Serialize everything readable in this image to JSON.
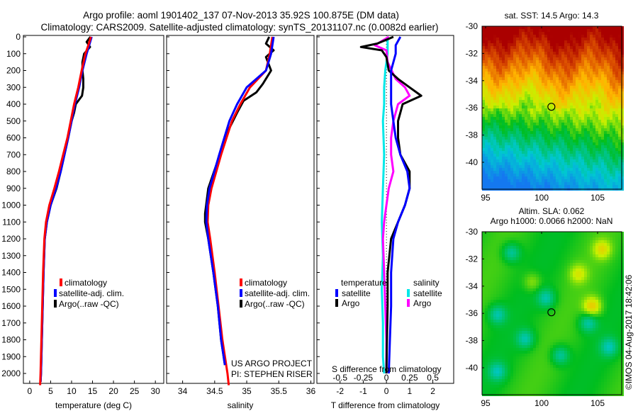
{
  "title_line1": "Argo profile: aoml 1901402_137 07-Nov-2013 35.92S 100.875E (DM data)",
  "title_line2": "Climatology: CARS2009. Satellite-adjusted climatology: synTS_20131107.nc (0.0082d earlier)",
  "colors": {
    "climatology": "#ff0000",
    "satellite": "#0000ff",
    "argo": "#000000",
    "sal_satellite": "#00e8e8",
    "sal_argo": "#ff00ff"
  },
  "chart_data": [
    {
      "type": "line",
      "xlabel": "temperature (deg C)",
      "ylabel": "depth",
      "xlim": [
        -1.5,
        32
      ],
      "ylim": [
        2070,
        0
      ],
      "xticks": [
        "0",
        "5",
        "10",
        "15",
        "20",
        "25",
        "30"
      ],
      "yticks": [
        "0",
        "100",
        "200",
        "300",
        "400",
        "500",
        "600",
        "700",
        "800",
        "900",
        "1000",
        "1100",
        "1200",
        "1300",
        "1400",
        "1500",
        "1600",
        "1700",
        "1800",
        "1900",
        "2000"
      ],
      "legend": [
        "climatology",
        "satellite-adj. clim.",
        "Argo(..raw -QC)"
      ],
      "series": [
        {
          "name": "climatology",
          "depth": [
            0,
            50,
            100,
            200,
            300,
            400,
            500,
            600,
            700,
            800,
            900,
            1000,
            1100,
            1200,
            1400,
            1600,
            1800,
            2000,
            2070
          ],
          "values": [
            14.6,
            14,
            13.3,
            12.4,
            11.6,
            10.6,
            9.8,
            9,
            8,
            7,
            5.9,
            4.7,
            3.9,
            3.5,
            3.2,
            3,
            2.8,
            2.6,
            2.5
          ]
        },
        {
          "name": "satellite-adj. clim.",
          "depth": [
            0,
            50,
            100,
            200,
            300,
            400,
            500,
            600,
            700,
            800,
            900,
            1000,
            1100,
            1200,
            1400,
            1600,
            1800,
            2000,
            2050
          ],
          "values": [
            14.8,
            14.2,
            13.6,
            12.6,
            11.8,
            10.8,
            10,
            9.2,
            8.3,
            7.4,
            6.3,
            5,
            4.1,
            3.6,
            3.3,
            3.1,
            2.9,
            2.7,
            2.6
          ]
        },
        {
          "name": "Argo(..raw -QC)",
          "depth": [
            0,
            30,
            60,
            100,
            150,
            200,
            250,
            300,
            350,
            400,
            450,
            500,
            600,
            700,
            800,
            900,
            1000,
            1100,
            1200,
            1400,
            1600,
            1800,
            2000,
            2050
          ],
          "values": [
            14.5,
            13.6,
            14.4,
            13,
            12.6,
            12.6,
            12.8,
            12.8,
            12.5,
            11,
            10.6,
            10,
            9.2,
            8.3,
            7.4,
            6.4,
            5,
            4.1,
            3.6,
            3.3,
            3.1,
            2.9,
            2.7,
            2.6
          ]
        }
      ]
    },
    {
      "type": "line",
      "xlabel": "salinity",
      "ylabel": "depth",
      "xlim": [
        33.75,
        36.05
      ],
      "ylim": [
        2070,
        0
      ],
      "xticks": [
        "34",
        "34.5",
        "35",
        "35.5",
        "36"
      ],
      "legend": [
        "climatology",
        "satellite-adj. clim.",
        "Argo(..raw -QC)"
      ],
      "annotations": [
        "US ARGO PROJECT",
        "PI: STEPHEN RISER"
      ],
      "series": [
        {
          "name": "climatology",
          "depth": [
            0,
            100,
            200,
            300,
            400,
            500,
            700,
            900,
            1000,
            1100,
            1200,
            1400,
            1600,
            1800,
            2000,
            2070
          ],
          "values": [
            35.4,
            35.36,
            35.3,
            35.05,
            34.9,
            34.77,
            34.6,
            34.45,
            34.4,
            34.39,
            34.43,
            34.5,
            34.56,
            34.62,
            34.7,
            34.72
          ]
        },
        {
          "name": "satellite-adj. clim.",
          "depth": [
            0,
            100,
            200,
            300,
            400,
            500,
            700,
            900,
            1000,
            1100,
            1200,
            1400,
            1600,
            1800,
            1950
          ],
          "values": [
            35.42,
            35.38,
            35.3,
            35.0,
            34.85,
            34.73,
            34.57,
            34.42,
            34.38,
            34.37,
            34.4,
            34.48,
            34.55,
            34.6,
            34.66
          ]
        },
        {
          "name": "Argo(..raw -QC)",
          "depth": [
            0,
            40,
            80,
            120,
            200,
            280,
            330,
            380,
            450,
            550,
            700,
            900,
            1050,
            1100,
            1200,
            1400,
            1600,
            1800,
            1950
          ],
          "values": [
            35.35,
            35.3,
            35.42,
            35.3,
            35.38,
            35.25,
            35.15,
            34.95,
            34.85,
            34.72,
            34.58,
            34.4,
            34.35,
            34.35,
            34.4,
            34.48,
            34.55,
            34.6,
            34.66
          ]
        }
      ]
    },
    {
      "type": "line",
      "xlabel": "T difference from climatology",
      "xlabel2": "S difference from climatology",
      "xlim": [
        -3,
        2.9
      ],
      "ylim": [
        2070,
        0
      ],
      "xticks": [
        "-2",
        "-1",
        "0",
        "1",
        "2"
      ],
      "xticks2": [
        "-0.5",
        "-0.25",
        "0",
        "0.25",
        "0.5"
      ],
      "legend_titles": [
        "temperature",
        "salinity"
      ],
      "legend": [
        [
          "satellite",
          "Argo"
        ],
        [
          "satellite",
          "Argo"
        ]
      ],
      "series": [
        {
          "name": "temperature satellite",
          "depth": [
            0,
            50,
            100,
            200,
            300,
            400,
            500,
            600,
            700,
            800,
            900,
            1000,
            1100,
            1200,
            1400,
            1600,
            1800,
            2000
          ],
          "values": [
            0.6,
            0.4,
            0.4,
            0.2,
            0.2,
            0.2,
            0.3,
            0.4,
            0.6,
            0.9,
            1.0,
            0.8,
            0.5,
            0.3,
            0.2,
            0.2,
            0.15,
            0.1
          ]
        },
        {
          "name": "temperature Argo",
          "depth": [
            0,
            40,
            60,
            80,
            120,
            200,
            250,
            300,
            350,
            400,
            450,
            500,
            600,
            700,
            800,
            900,
            1000,
            1100,
            1200,
            1400,
            1600,
            1800,
            2000
          ],
          "values": [
            0.3,
            -0.4,
            -1.1,
            -0.2,
            0,
            0.1,
            0.5,
            1.0,
            1.5,
            0.7,
            0.6,
            0.5,
            0.5,
            0.6,
            1.0,
            1.0,
            0.8,
            0.5,
            0.2,
            0.05,
            0.05,
            0.02,
            0
          ]
        },
        {
          "name": "salinity satellite",
          "depth": [
            0,
            100,
            200,
            300,
            400,
            500,
            700,
            900,
            1100,
            1300,
            1500,
            1700,
            1900,
            2000
          ],
          "values": [
            0.05,
            0.05,
            -0.05,
            -0.1,
            -0.1,
            -0.15,
            -0.1,
            -0.15,
            -0.2,
            -0.15,
            -0.2,
            -0.15,
            -0.15,
            -0.1
          ]
        },
        {
          "name": "salinity Argo",
          "depth": [
            0,
            50,
            80,
            150,
            250,
            300,
            350,
            400,
            500,
            600,
            700,
            800,
            900,
            1000,
            1100,
            1200,
            1400,
            1600,
            1800,
            2000
          ],
          "values": [
            0.1,
            -0.5,
            0,
            0.05,
            0.4,
            0.8,
            1.0,
            0.5,
            0.3,
            0.2,
            0.2,
            0.3,
            0.1,
            0,
            -0.1,
            -0.15,
            -0.1,
            -0.05,
            0,
            0
          ]
        }
      ]
    }
  ],
  "sst_map": {
    "title": "sat. SST: 14.5 Argo: 14.3",
    "xticks": [
      "95",
      "100",
      "105"
    ],
    "yticks": [
      "-30",
      "-32",
      "-34",
      "-36",
      "-38",
      "-40"
    ],
    "float_lon": 100.875,
    "float_lat": -35.92
  },
  "sla_map": {
    "title_line1": "Altim. SLA: 0.062",
    "title_line2": "Argo h1000: 0.0066 h2000: NaN",
    "xticks": [
      "95",
      "100",
      "105"
    ],
    "yticks": [
      "-30",
      "-32",
      "-34",
      "-36",
      "-38",
      "-40"
    ],
    "float_lon": 100.875,
    "float_lat": -35.92
  },
  "footer_stamp": "©IMOS 04-Aug-2017 18:42:06"
}
